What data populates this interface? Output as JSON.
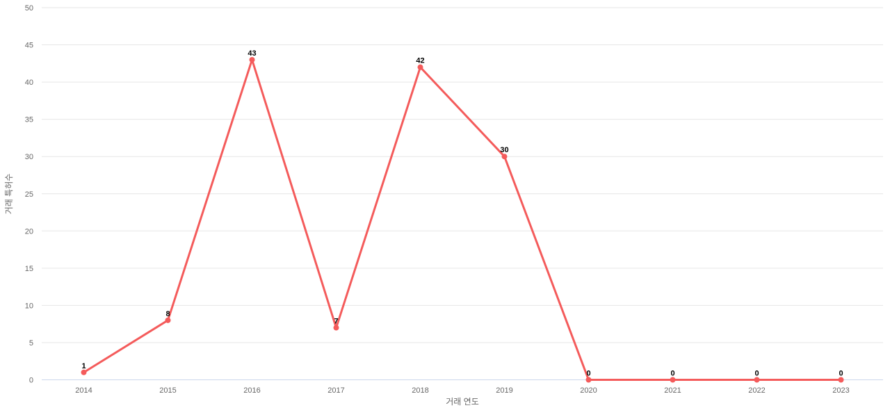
{
  "chart_data": {
    "type": "line",
    "title": "",
    "xlabel": "거래 연도",
    "ylabel": "거래 특허수",
    "categories": [
      "2014",
      "2015",
      "2016",
      "2017",
      "2018",
      "2019",
      "2020",
      "2021",
      "2022",
      "2023"
    ],
    "series": [
      {
        "name": "거래 특허수",
        "values": [
          1,
          8,
          43,
          7,
          42,
          30,
          0,
          0,
          0,
          0
        ],
        "color": "#f45b5b"
      }
    ],
    "point_labels": [
      1,
      8,
      43,
      7,
      42,
      30,
      0,
      0,
      0,
      0
    ],
    "ylim": [
      0,
      50
    ],
    "ytick_interval": 5,
    "yticks": [
      0,
      5,
      10,
      15,
      20,
      25,
      30,
      35,
      40,
      45,
      50
    ],
    "grid": "horizontal",
    "legend": "none",
    "colors": {
      "grid": "#e6e6e6",
      "axis_line": "#ccd6eb",
      "tick_label": "#666666",
      "axis_title": "#666666",
      "data_label": "#000000",
      "background": "#ffffff"
    }
  }
}
